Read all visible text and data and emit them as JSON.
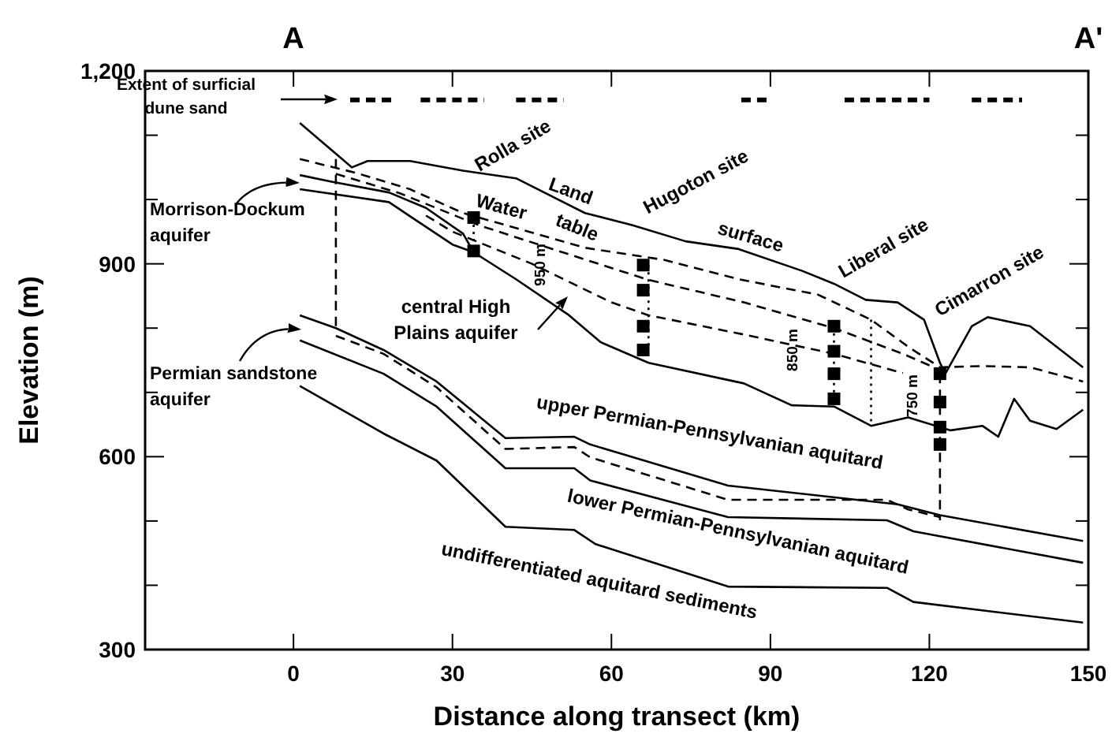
{
  "chart_data": {
    "type": "line",
    "xlabel": "Distance along transect (km)",
    "ylabel": "Elevation (m)",
    "xlim": [
      -28,
      150
    ],
    "ylim": [
      300,
      1200
    ],
    "xticks": [
      0,
      30,
      60,
      90,
      120,
      150
    ],
    "yticks": [
      {
        "value": 300,
        "label": "300"
      },
      {
        "value": 400,
        "label": null
      },
      {
        "value": 500,
        "label": null
      },
      {
        "value": 600,
        "label": "600"
      },
      {
        "value": 700,
        "label": null
      },
      {
        "value": 800,
        "label": null
      },
      {
        "value": 900,
        "label": "900"
      },
      {
        "value": 1000,
        "label": null
      },
      {
        "value": 1100,
        "label": null
      },
      {
        "value": 1200,
        "label": "1,200"
      }
    ],
    "grid": false,
    "series": [
      {
        "color": "#000000",
        "line_style": "solid",
        "x": [
          1.2,
          11,
          14,
          22,
          32,
          42,
          55,
          64,
          74,
          84,
          96,
          102,
          108,
          114,
          119,
          122,
          123,
          128,
          131,
          139,
          149
        ],
        "values": [
          1119,
          1050,
          1060,
          1060,
          1045,
          1033,
          979,
          960,
          935,
          923,
          889,
          869,
          844,
          840,
          813,
          746,
          729,
          803,
          817,
          803,
          739
        ]
      },
      {
        "color": "#000000",
        "line_style": "dashed",
        "x": [
          1.2,
          12,
          22,
          32,
          55,
          70,
          84,
          99,
          109,
          116,
          122,
          130,
          139,
          149
        ],
        "values": [
          1063,
          1041,
          1016,
          979,
          925,
          906,
          876,
          852,
          813,
          771,
          739,
          741,
          739,
          717
        ]
      },
      {
        "color": "#000000",
        "line_style": "dashed",
        "x": [
          8,
          20,
          35,
          50,
          67,
          85,
          102,
          115,
          122
        ],
        "values": [
          1040,
          1010,
          960,
          920,
          875,
          840,
          800,
          760,
          735
        ]
      },
      {
        "color": "#000000",
        "line_style": "dashed",
        "x": [
          25,
          30,
          45,
          60,
          67,
          85,
          102,
          115
        ],
        "values": [
          975,
          950,
          900,
          840,
          820,
          790,
          760,
          730
        ]
      },
      {
        "color": "#000000",
        "line_style": "solid",
        "x": [
          1.2,
          7,
          18,
          25,
          32,
          34
        ],
        "values": [
          1038,
          1028,
          1011,
          987,
          947,
          918
        ]
      },
      {
        "color": "#000000",
        "line_style": "solid",
        "x": [
          1.2,
          18,
          22,
          30,
          34,
          42,
          52,
          58,
          67,
          85,
          94,
          102,
          109,
          116,
          124,
          130,
          133,
          136,
          139,
          144,
          149
        ],
        "values": [
          1016,
          996,
          974,
          930,
          918,
          876,
          820,
          778,
          746,
          714,
          680,
          678,
          648,
          661,
          641,
          648,
          631,
          690,
          656,
          643,
          673
        ]
      },
      {
        "color": "#000000",
        "line_style": "solid",
        "x": [
          1.2,
          8,
          17,
          27,
          40,
          53,
          56,
          82,
          114,
          122,
          149
        ],
        "values": [
          820,
          800,
          766,
          717,
          629,
          631,
          619,
          555,
          526,
          509,
          469
        ]
      },
      {
        "color": "#000000",
        "line_style": "dashed",
        "x": [
          8,
          17,
          27,
          40,
          53,
          56,
          82,
          100,
          112,
          116,
          122
        ],
        "values": [
          788,
          760,
          708,
          612,
          615,
          599,
          533,
          533,
          533,
          518,
          506
        ]
      },
      {
        "color": "#000000",
        "line_style": "solid",
        "x": [
          1.2,
          17,
          27,
          40,
          53,
          56,
          82,
          112,
          117,
          149
        ],
        "values": [
          781,
          729,
          678,
          582,
          582,
          563,
          506,
          501,
          484,
          435
        ]
      },
      {
        "color": "#000000",
        "line_style": "solid",
        "x": [
          1.2,
          17,
          27,
          40,
          53,
          57,
          82,
          112,
          117,
          149
        ],
        "values": [
          710,
          636,
          594,
          491,
          486,
          464,
          398,
          396,
          374,
          342
        ]
      },
      {
        "color": "#000000",
        "line_style": "dashed",
        "x": [
          8,
          8
        ],
        "values": [
          1063,
          800
        ]
      },
      {
        "color": "#000000",
        "line_style": "dashed",
        "x": [
          122,
          122
        ],
        "values": [
          729,
          501
        ]
      },
      {
        "color": "#000000",
        "line_style": "dotted",
        "x": [
          34,
          34
        ],
        "values": [
          972,
          920
        ]
      },
      {
        "color": "#000000",
        "line_style": "dotted",
        "x": [
          67,
          67
        ],
        "values": [
          898,
          766
        ]
      },
      {
        "color": "#000000",
        "line_style": "dotted",
        "x": [
          102,
          102
        ],
        "values": [
          803,
          690
        ]
      },
      {
        "color": "#000000",
        "line_style": "dotted",
        "x": [
          109,
          109
        ],
        "values": [
          813,
          648
        ]
      },
      {
        "color": "#000000",
        "line_style": "dashed",
        "x": [
          10.7,
          19,
          21,
          24,
          36,
          39,
          42,
          51,
          70,
          84.5,
          90,
          97,
          104,
          120,
          124,
          128,
          137.5
        ],
        "values": [
          1155,
          1155,
          null,
          1155,
          1155,
          null,
          1155,
          1155,
          null,
          1155,
          1155,
          null,
          1155,
          1155,
          null,
          1155,
          1155
        ]
      },
      {
        "type": "scatter",
        "color": "#000000",
        "marker": "square",
        "x": [
          34,
          34,
          66,
          66,
          66,
          66,
          102,
          102,
          102,
          102,
          122,
          122,
          122,
          122
        ],
        "values": [
          972,
          920,
          898,
          859,
          803,
          766,
          803,
          764,
          729,
          690,
          729,
          685,
          646,
          619
        ]
      }
    ],
    "annotations": [
      "Extent of surficial\ndune sand",
      "Rolla site",
      "Land",
      "Hugoton site",
      "Water",
      "table",
      "surface",
      "Liberal site",
      "Cimarron site",
      "Morrison-Dockum\naquifer",
      "central High\nPlains aquifer",
      "Permian sandstone\naquifer",
      "upper Permian-Pennsylvanian aquitard",
      "lower Permian-Pennsylvanian aquitard",
      "undifferentiated aquitard sediments",
      "950 m",
      "850 m",
      "750 m",
      "A",
      "A'"
    ]
  }
}
